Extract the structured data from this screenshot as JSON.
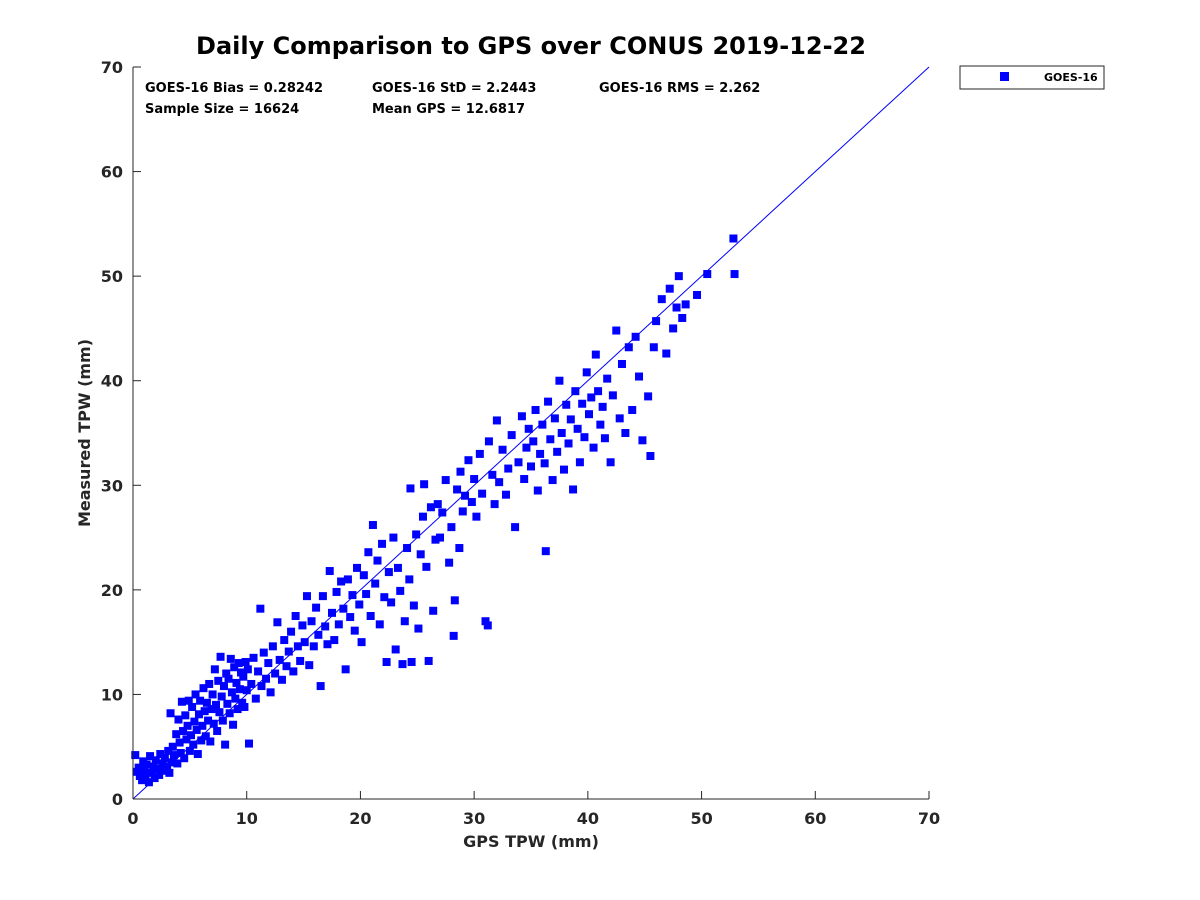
{
  "chart_data": {
    "type": "scatter",
    "title": "Daily Comparison to GPS over CONUS 2019-12-22",
    "xlabel": "GPS TPW (mm)",
    "ylabel": "Measured TPW (mm)",
    "xlim": [
      0,
      70
    ],
    "ylim": [
      0,
      70
    ],
    "xticks": [
      0,
      10,
      20,
      30,
      40,
      50,
      60,
      70
    ],
    "yticks": [
      0,
      10,
      20,
      30,
      40,
      50,
      60,
      70
    ],
    "grid": false,
    "legend": {
      "position": "outside-top-right",
      "entries": [
        "GOES-16"
      ]
    },
    "reference_line": {
      "name": "1:1 line",
      "x": [
        0,
        70
      ],
      "y": [
        0,
        70
      ]
    },
    "series": [
      {
        "name": "GOES-16",
        "color": "#0000ff",
        "marker": "square",
        "points": [
          [
            0.2,
            4.2
          ],
          [
            0.3,
            2.6
          ],
          [
            0.5,
            3.0
          ],
          [
            0.6,
            2.2
          ],
          [
            0.8,
            1.8
          ],
          [
            0.9,
            3.6
          ],
          [
            1.0,
            2.9
          ],
          [
            1.1,
            2.2
          ],
          [
            1.2,
            3.3
          ],
          [
            1.4,
            1.6
          ],
          [
            1.5,
            4.1
          ],
          [
            1.6,
            2.5
          ],
          [
            1.8,
            3.1
          ],
          [
            1.9,
            2.0
          ],
          [
            2.0,
            3.7
          ],
          [
            2.2,
            2.9
          ],
          [
            2.3,
            2.3
          ],
          [
            2.4,
            4.3
          ],
          [
            2.6,
            3.4
          ],
          [
            2.7,
            2.7
          ],
          [
            2.8,
            3.9
          ],
          [
            3.0,
            3.1
          ],
          [
            3.1,
            4.6
          ],
          [
            3.2,
            2.5
          ],
          [
            3.3,
            8.2
          ],
          [
            3.4,
            3.5
          ],
          [
            3.5,
            5.0
          ],
          [
            3.6,
            4.2
          ],
          [
            3.8,
            6.2
          ],
          [
            3.9,
            3.4
          ],
          [
            4.0,
            7.6
          ],
          [
            4.1,
            5.4
          ],
          [
            4.2,
            4.4
          ],
          [
            4.3,
            9.3
          ],
          [
            4.4,
            6.5
          ],
          [
            4.5,
            3.9
          ],
          [
            4.6,
            8.0
          ],
          [
            4.7,
            5.7
          ],
          [
            4.8,
            7.0
          ],
          [
            4.9,
            9.4
          ],
          [
            5.0,
            4.6
          ],
          [
            5.1,
            6.1
          ],
          [
            5.2,
            8.8
          ],
          [
            5.3,
            5.2
          ],
          [
            5.4,
            7.4
          ],
          [
            5.5,
            10.0
          ],
          [
            5.6,
            6.6
          ],
          [
            5.7,
            4.3
          ],
          [
            5.8,
            8.1
          ],
          [
            5.9,
            9.4
          ],
          [
            6.0,
            5.6
          ],
          [
            6.1,
            7.0
          ],
          [
            6.2,
            10.6
          ],
          [
            6.3,
            8.4
          ],
          [
            6.4,
            6.0
          ],
          [
            6.5,
            9.2
          ],
          [
            6.6,
            7.5
          ],
          [
            6.7,
            11.0
          ],
          [
            6.8,
            5.5
          ],
          [
            6.9,
            8.6
          ],
          [
            7.0,
            10.0
          ],
          [
            7.1,
            7.2
          ],
          [
            7.2,
            12.4
          ],
          [
            7.3,
            9.0
          ],
          [
            7.4,
            6.5
          ],
          [
            7.5,
            11.3
          ],
          [
            7.6,
            8.3
          ],
          [
            7.7,
            13.6
          ],
          [
            7.8,
            9.8
          ],
          [
            7.9,
            7.5
          ],
          [
            8.0,
            10.8
          ],
          [
            8.1,
            5.2
          ],
          [
            8.2,
            12.0
          ],
          [
            8.3,
            9.1
          ],
          [
            8.4,
            11.5
          ],
          [
            8.5,
            8.2
          ],
          [
            8.6,
            13.4
          ],
          [
            8.7,
            10.2
          ],
          [
            8.8,
            7.1
          ],
          [
            8.9,
            12.6
          ],
          [
            9.0,
            9.6
          ],
          [
            9.1,
            11.1
          ],
          [
            9.2,
            8.6
          ],
          [
            9.3,
            13.0
          ],
          [
            9.4,
            10.5
          ],
          [
            9.5,
            12.1
          ],
          [
            9.6,
            9.2
          ],
          [
            9.7,
            11.7
          ],
          [
            9.8,
            8.8
          ],
          [
            9.9,
            13.1
          ],
          [
            10.0,
            10.4
          ],
          [
            10.1,
            12.4
          ],
          [
            10.2,
            5.3
          ],
          [
            10.4,
            11.0
          ],
          [
            10.6,
            13.5
          ],
          [
            10.8,
            9.6
          ],
          [
            11.0,
            12.2
          ],
          [
            11.2,
            18.2
          ],
          [
            11.3,
            10.8
          ],
          [
            11.5,
            14.0
          ],
          [
            11.7,
            11.5
          ],
          [
            11.9,
            13.0
          ],
          [
            12.1,
            10.2
          ],
          [
            12.3,
            14.6
          ],
          [
            12.5,
            12.0
          ],
          [
            12.7,
            16.9
          ],
          [
            12.9,
            13.3
          ],
          [
            13.1,
            11.4
          ],
          [
            13.3,
            15.2
          ],
          [
            13.5,
            12.7
          ],
          [
            13.7,
            14.1
          ],
          [
            13.9,
            16.0
          ],
          [
            14.1,
            12.2
          ],
          [
            14.3,
            17.5
          ],
          [
            14.5,
            14.6
          ],
          [
            14.7,
            13.2
          ],
          [
            14.9,
            16.6
          ],
          [
            15.1,
            15.0
          ],
          [
            15.3,
            19.4
          ],
          [
            15.5,
            12.8
          ],
          [
            15.7,
            17.0
          ],
          [
            15.9,
            14.6
          ],
          [
            16.1,
            18.3
          ],
          [
            16.3,
            15.7
          ],
          [
            16.5,
            10.8
          ],
          [
            16.7,
            19.4
          ],
          [
            16.9,
            16.5
          ],
          [
            17.1,
            14.8
          ],
          [
            17.3,
            21.8
          ],
          [
            17.5,
            17.8
          ],
          [
            17.7,
            15.2
          ],
          [
            17.9,
            19.8
          ],
          [
            18.1,
            16.7
          ],
          [
            18.3,
            20.8
          ],
          [
            18.5,
            18.2
          ],
          [
            18.7,
            12.4
          ],
          [
            18.9,
            21.0
          ],
          [
            19.1,
            17.4
          ],
          [
            19.3,
            19.5
          ],
          [
            19.5,
            16.1
          ],
          [
            19.7,
            22.1
          ],
          [
            19.9,
            18.6
          ],
          [
            20.1,
            15.0
          ],
          [
            20.3,
            21.4
          ],
          [
            20.5,
            19.6
          ],
          [
            20.7,
            23.6
          ],
          [
            20.9,
            17.5
          ],
          [
            21.1,
            26.2
          ],
          [
            21.3,
            20.6
          ],
          [
            21.5,
            22.8
          ],
          [
            21.7,
            16.7
          ],
          [
            21.9,
            24.4
          ],
          [
            22.1,
            19.3
          ],
          [
            22.3,
            13.1
          ],
          [
            22.5,
            21.7
          ],
          [
            22.7,
            18.8
          ],
          [
            22.9,
            25.0
          ],
          [
            23.1,
            14.3
          ],
          [
            23.3,
            22.1
          ],
          [
            23.5,
            19.9
          ],
          [
            23.7,
            12.9
          ],
          [
            23.9,
            17.0
          ],
          [
            24.1,
            24.0
          ],
          [
            24.3,
            21.0
          ],
          [
            24.4,
            29.7
          ],
          [
            24.5,
            13.1
          ],
          [
            24.7,
            18.5
          ],
          [
            24.9,
            25.3
          ],
          [
            25.1,
            16.3
          ],
          [
            25.3,
            23.4
          ],
          [
            25.5,
            27.0
          ],
          [
            25.6,
            30.1
          ],
          [
            25.8,
            22.2
          ],
          [
            26.0,
            13.2
          ],
          [
            26.2,
            27.9
          ],
          [
            26.4,
            18.0
          ],
          [
            26.6,
            24.8
          ],
          [
            26.8,
            28.2
          ],
          [
            27.0,
            25.0
          ],
          [
            27.2,
            27.4
          ],
          [
            27.5,
            30.5
          ],
          [
            27.8,
            22.6
          ],
          [
            28.0,
            26.0
          ],
          [
            28.2,
            15.6
          ],
          [
            28.3,
            19.0
          ],
          [
            28.5,
            29.6
          ],
          [
            28.7,
            24.0
          ],
          [
            28.8,
            31.3
          ],
          [
            29.0,
            27.5
          ],
          [
            29.2,
            29.0
          ],
          [
            29.5,
            32.4
          ],
          [
            29.8,
            28.4
          ],
          [
            30.0,
            30.6
          ],
          [
            30.2,
            27.0
          ],
          [
            30.5,
            33.0
          ],
          [
            30.7,
            29.2
          ],
          [
            31.0,
            17.0
          ],
          [
            31.2,
            16.6
          ],
          [
            31.3,
            34.2
          ],
          [
            31.6,
            31.0
          ],
          [
            31.8,
            28.2
          ],
          [
            32.0,
            36.2
          ],
          [
            32.2,
            30.3
          ],
          [
            32.5,
            33.4
          ],
          [
            32.8,
            29.1
          ],
          [
            33.0,
            31.6
          ],
          [
            33.3,
            34.8
          ],
          [
            33.6,
            26.0
          ],
          [
            33.9,
            32.2
          ],
          [
            34.2,
            36.6
          ],
          [
            34.4,
            30.6
          ],
          [
            34.6,
            33.6
          ],
          [
            34.8,
            35.4
          ],
          [
            35.0,
            31.8
          ],
          [
            35.2,
            34.2
          ],
          [
            35.4,
            37.2
          ],
          [
            35.6,
            29.5
          ],
          [
            35.8,
            33.0
          ],
          [
            36.0,
            35.8
          ],
          [
            36.2,
            32.1
          ],
          [
            36.3,
            23.7
          ],
          [
            36.5,
            38.0
          ],
          [
            36.7,
            34.4
          ],
          [
            36.9,
            30.5
          ],
          [
            37.1,
            36.4
          ],
          [
            37.3,
            33.2
          ],
          [
            37.5,
            40.0
          ],
          [
            37.7,
            35.0
          ],
          [
            37.9,
            31.5
          ],
          [
            38.1,
            37.7
          ],
          [
            38.3,
            34.0
          ],
          [
            38.5,
            36.3
          ],
          [
            38.7,
            29.6
          ],
          [
            38.9,
            39.0
          ],
          [
            39.1,
            35.4
          ],
          [
            39.3,
            32.2
          ],
          [
            39.5,
            37.8
          ],
          [
            39.7,
            34.6
          ],
          [
            39.9,
            40.8
          ],
          [
            40.1,
            36.8
          ],
          [
            40.3,
            38.4
          ],
          [
            40.5,
            33.6
          ],
          [
            40.7,
            42.5
          ],
          [
            40.9,
            39.0
          ],
          [
            41.1,
            35.8
          ],
          [
            41.3,
            37.5
          ],
          [
            41.5,
            34.5
          ],
          [
            41.7,
            40.2
          ],
          [
            42.0,
            32.2
          ],
          [
            42.2,
            38.6
          ],
          [
            42.5,
            44.8
          ],
          [
            42.8,
            36.4
          ],
          [
            43.0,
            41.6
          ],
          [
            43.3,
            35.0
          ],
          [
            43.6,
            43.2
          ],
          [
            43.9,
            37.2
          ],
          [
            44.2,
            44.2
          ],
          [
            44.5,
            40.4
          ],
          [
            44.8,
            34.3
          ],
          [
            45.3,
            38.5
          ],
          [
            45.5,
            32.8
          ],
          [
            45.8,
            43.2
          ],
          [
            46.0,
            45.7
          ],
          [
            46.5,
            47.8
          ],
          [
            46.9,
            42.6
          ],
          [
            47.2,
            48.8
          ],
          [
            47.5,
            45.0
          ],
          [
            47.8,
            47.0
          ],
          [
            48.0,
            50.0
          ],
          [
            48.3,
            46.0
          ],
          [
            48.6,
            47.3
          ],
          [
            49.6,
            48.2
          ],
          [
            50.5,
            50.2
          ],
          [
            52.8,
            53.6
          ],
          [
            52.9,
            50.2
          ]
        ]
      }
    ],
    "annotations": [
      {
        "name": "bias",
        "text": "GOES-16 Bias = 0.28242"
      },
      {
        "name": "std",
        "text": "GOES-16 StD = 2.2443"
      },
      {
        "name": "rms",
        "text": "GOES-16 RMS = 2.262"
      },
      {
        "name": "sample-size",
        "text": "Sample Size = 16624"
      },
      {
        "name": "mean-gps",
        "text": "Mean GPS = 12.6817"
      }
    ]
  }
}
